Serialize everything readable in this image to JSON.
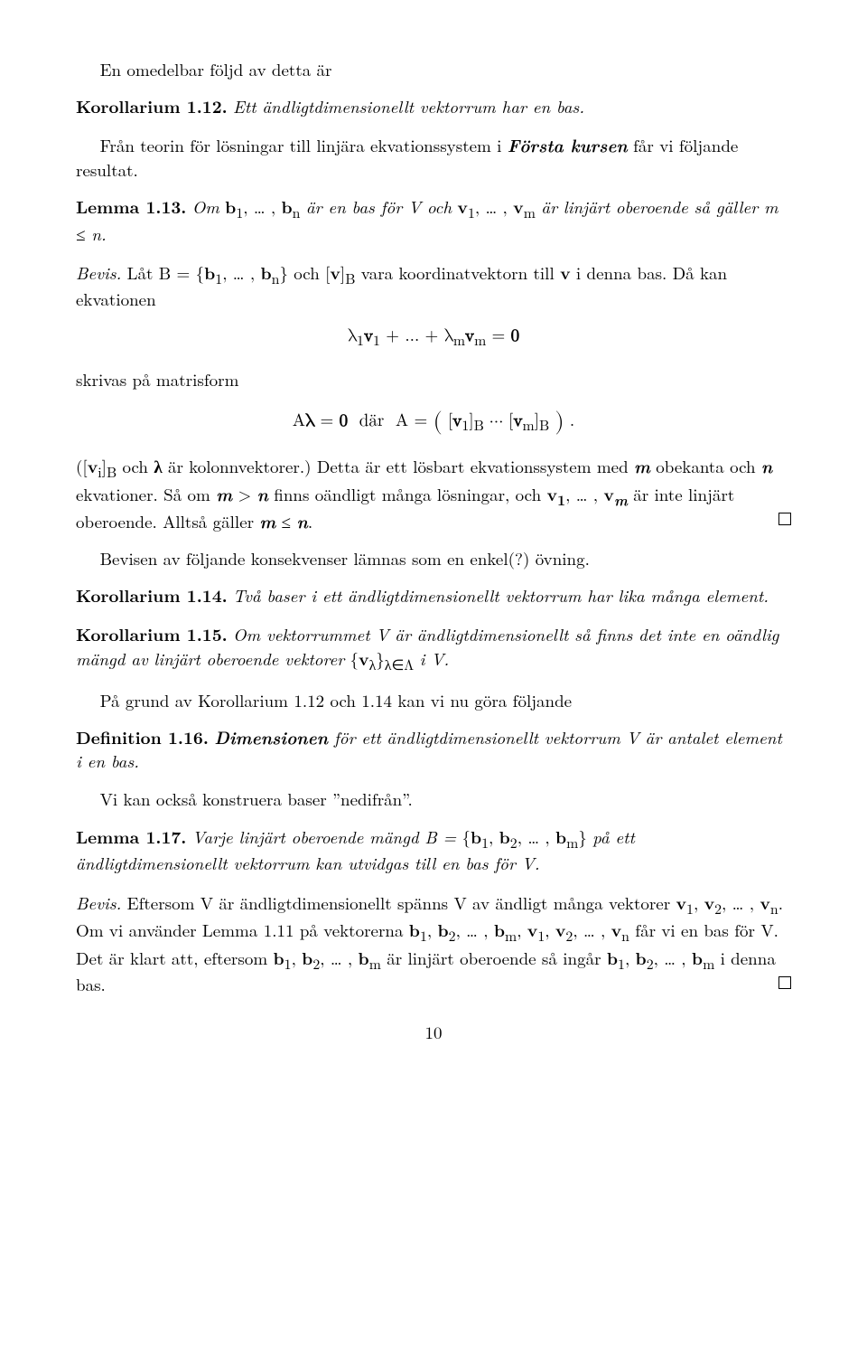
{
  "p1_indent": "En omedelbar följd av detta är",
  "cor112_lead": "Korollarium 1.12.",
  "cor112_body": "Ett ändligtdimensionellt vektorrum har en bas.",
  "p2_part1": "Från teorin för lösningar till linjära ekvationssystem i ",
  "p2_emph": "Första kursen",
  "p2_part2": " får vi följande resultat.",
  "lem113_lead": "Lemma 1.13.",
  "lem113_body_html": " <span class='ital'>Om</span> <span class='bold'>b</span><sub>1</sub>, … , <span class='bold'>b</span><sub>n</sub> <span class='ital'>är en bas för V och</span> <span class='bold'>v</span><sub>1</sub>, … , <span class='bold'>v</span><sub>m</sub> <span class='ital'>är linjärt oberoende så gäller m ≤ n.</span>",
  "proof_lead": "Bevis.",
  "proof1_html": " Låt B = {<span class='bold'>b</span><sub>1</sub>, … , <span class='bold'>b</span><sub>n</sub>} och [<span class='bold'>v</span>]<sub>B</sub> vara koordinatvektorn till <span class='bold'>v</span> i denna bas. Då kan ekvationen",
  "disp1_html": "λ<sub>1</sub><span class='bold'>v</span><sub>1</sub> + … + λ<sub>m</sub><span class='bold'>v</span><sub>m</sub> = <span class='bold'>0</span>",
  "proof2": "skrivas på matrisform",
  "disp2_html": "A<span class='bold'>λ</span> = <span class='bold'>0</span>&nbsp; där &nbsp;A = <span style='font-size:26px;position:relative;top:3px'>(</span> [<span class='bold'>v</span><sub>1</sub>]<sub>B</sub> ⋯ [<span class='bold'>v</span><sub>m</sub>]<sub>B</sub> <span style='font-size:26px;position:relative;top:3px'>)</span> .",
  "proof3_html": "([<span class='bold'>v</span><sub>i</sub>]<sub>B</sub> och <span class='bold'>λ</span> är kolonnvektorer.) Detta är ett lösbart ekvationssystem med <span class='bi'>m</span> obekanta och <span class='bi'>n</span> ekvationer. Så om <span class='bi'>m</span> &gt; <span class='bi'>n</span> finns oändligt många lösningar, och <span class='bold'>v<sub>1</sub></span>, … , <span class='bold'>v</span><sub><span class='bi'>m</span></sub> är inte linjärt oberoende. Alltså gäller <span class='bi'>m</span> ≤ <span class='bi'>n</span>.",
  "p_after_proof": "Bevisen av följande konsekvenser lämnas som en enkel(?) övning.",
  "cor114_lead": "Korollarium 1.14.",
  "cor114_body": "Två baser i ett ändligtdimensionellt vektorrum har lika många element.",
  "cor115_lead": "Korollarium 1.15.",
  "cor115_body_html": " <span class='ital'>Om vektorrummet V är ändligtdimensionellt så finns det inte en oändlig mängd av linjärt oberoende vektorer</span> {<span class='bold'>v</span><sub>λ</sub>}<sub>λ∈Λ</sub> <span class='ital'>i V.</span>",
  "p_korollref": "På grund av Korollarium 1.12 och 1.14 kan vi nu göra följande",
  "def116_lead": "Definition 1.16.",
  "def116_emph": "Dimensionen",
  "def116_body": " för ett ändligtdimensionellt vektorrum V är antalet element i en bas.",
  "p_baser": "Vi kan också konstruera baser ”nedifrån”.",
  "lem117_lead": "Lemma 1.17.",
  "lem117_body_html": " <span class='ital'>Varje linjärt oberoende mängd B =</span> {<span class='bold'>b</span><sub>1</sub>, <span class='bold'>b</span><sub>2</sub>, … , <span class='bold'>b</span><sub>m</sub>} <span class='ital'>på ett ändligtdimensionellt vektorrum kan utvidgas till en bas för V.</span>",
  "proof117_html": " Eftersom V är ändligtdimensionellt spänns V av ändligt många vektorer <span class='bold'>v</span><sub>1</sub>, <span class='bold'>v</span><sub>2</sub>, … , <span class='bold'>v</span><sub>n</sub>. Om vi använder Lemma 1.11 på vektorerna <span class='bold'>b</span><sub>1</sub>, <span class='bold'>b</span><sub>2</sub>, … , <span class='bold'>b</span><sub>m</sub>, <span class='bold'>v</span><sub>1</sub>, <span class='bold'>v</span><sub>2</sub>, … , <span class='bold'>v</span><sub>n</sub> får vi en bas för V. Det är klart att, eftersom <span class='bold'>b</span><sub>1</sub>, <span class='bold'>b</span><sub>2</sub>, … , <span class='bold'>b</span><sub>m</sub> är linjärt oberoende så ingår <span class='bold'>b</span><sub>1</sub>, <span class='bold'>b</span><sub>2</sub>, … , <span class='bold'>b</span><sub>m</sub> i denna bas.",
  "pagenum": "10"
}
